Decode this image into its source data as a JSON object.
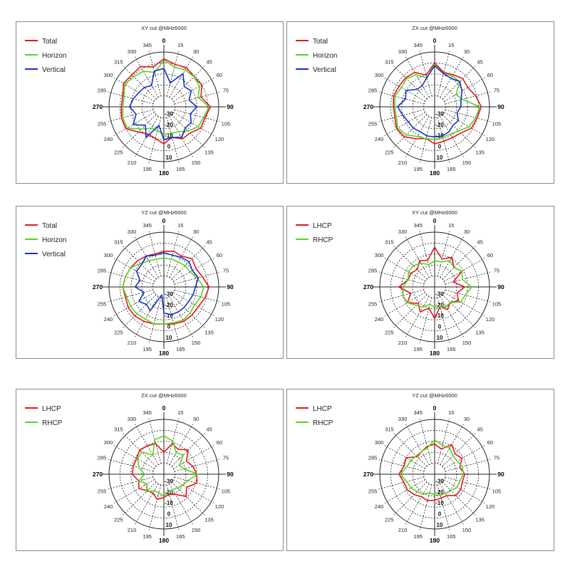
{
  "angle_labels": [
    "0",
    "15",
    "30",
    "45",
    "60",
    "75",
    "90",
    "105",
    "120",
    "135",
    "150",
    "165",
    "180",
    "195",
    "210",
    "225",
    "240",
    "255",
    "270",
    "285",
    "300",
    "315",
    "330",
    "345"
  ],
  "radial_labels": [
    "-30",
    "-20",
    "-10",
    "0",
    "10"
  ],
  "colors": {
    "Total": "#e8141c",
    "Horizon": "#5ad21f",
    "Vertical": "#1432c8",
    "LHCP": "#e8141c",
    "RHCP": "#5ad21f"
  },
  "chart_data": [
    {
      "type": "polar",
      "title": "XY cut @MHz6000",
      "theta_deg": [
        0,
        15,
        30,
        45,
        60,
        75,
        90,
        105,
        120,
        135,
        150,
        165,
        180,
        195,
        210,
        225,
        240,
        255,
        270,
        285,
        300,
        315,
        330,
        345
      ],
      "rlim": [
        -30,
        10
      ],
      "rticks": [
        -30,
        -20,
        -10,
        0,
        10
      ],
      "legend_position": "top-left",
      "series": [
        {
          "name": "Total",
          "r": [
            5,
            2,
            3,
            1,
            2,
            -2,
            4,
            1,
            1,
            -3,
            -3,
            -7,
            -3,
            -6,
            -7,
            -4,
            2,
            2,
            1,
            1,
            4,
            3,
            4,
            0
          ]
        },
        {
          "name": "Horizon",
          "r": [
            4,
            0,
            1,
            1,
            0,
            -4,
            3,
            0,
            -1,
            -5,
            -9,
            -10,
            -10,
            -12,
            -12,
            -7,
            1,
            1,
            0,
            0,
            3,
            1,
            0,
            -4
          ]
        },
        {
          "name": "Vertical",
          "r": [
            -2,
            -12,
            -2,
            -9,
            -7,
            -11,
            -6,
            -10,
            -7,
            -8,
            -4,
            -7,
            -6,
            -16,
            -4,
            -11,
            -4,
            -9,
            -5,
            -7,
            -9,
            -10,
            -12,
            -3
          ]
        }
      ]
    },
    {
      "type": "polar",
      "title": "ZX cut @MHz6000",
      "theta_deg": [
        0,
        15,
        30,
        45,
        60,
        75,
        90,
        105,
        120,
        135,
        150,
        165,
        180,
        195,
        210,
        225,
        240,
        255,
        270,
        285,
        300,
        315,
        330,
        345
      ],
      "rlim": [
        -30,
        10
      ],
      "rticks": [
        -30,
        -20,
        -10,
        0,
        10
      ],
      "legend_position": "top-left",
      "series": [
        {
          "name": "Total",
          "r": [
            2,
            -4,
            -3,
            -1,
            -2,
            1,
            4,
            2,
            1,
            -3,
            -4,
            -4,
            -3,
            -6,
            -3,
            1,
            2,
            0,
            0,
            1,
            0,
            0,
            -1,
            -6
          ]
        },
        {
          "name": "Horizon",
          "r": [
            1,
            -5,
            -4,
            -4,
            -12,
            -9,
            3,
            1,
            -1,
            -5,
            -7,
            -7,
            -6,
            -6,
            -5,
            -1,
            1,
            -1,
            -1,
            0,
            -2,
            -1,
            -3,
            -8
          ]
        },
        {
          "name": "Vertical",
          "r": [
            0,
            -5,
            -6,
            -4,
            -7,
            -10,
            -11,
            -13,
            -10,
            -11,
            -9,
            -8,
            -8,
            -8,
            -9,
            -8,
            -8,
            -6,
            -3,
            -8,
            -6,
            -12,
            -12,
            -8
          ]
        }
      ]
    },
    {
      "type": "polar",
      "title": "YZ cut @MHz6000",
      "theta_deg": [
        0,
        15,
        30,
        45,
        60,
        75,
        90,
        105,
        120,
        135,
        150,
        165,
        180,
        195,
        210,
        225,
        240,
        255,
        270,
        285,
        300,
        315,
        330,
        345
      ],
      "rlim": [
        -30,
        10
      ],
      "rticks": [
        -30,
        -20,
        -10,
        0,
        10
      ],
      "legend_position": "top-left",
      "series": [
        {
          "name": "Total",
          "r": [
            -4,
            -3,
            -4,
            -1,
            -3,
            -1,
            3,
            1,
            -1,
            -1,
            -1,
            -2,
            -3,
            -2,
            -1,
            0,
            0,
            -1,
            0,
            -1,
            -2,
            -3,
            -4,
            -5
          ]
        },
        {
          "name": "Horizon",
          "r": [
            -9,
            -9,
            -9,
            -8,
            -8,
            -5,
            -1,
            -2,
            -4,
            -3,
            -2,
            -3,
            -3,
            -2,
            -3,
            -2,
            -2,
            -2,
            0,
            -1,
            -2,
            -6,
            -8,
            -9
          ]
        },
        {
          "name": "Vertical",
          "r": [
            -5,
            -6,
            -5,
            -4,
            -6,
            -4,
            -7,
            -8,
            -9,
            -9,
            -9,
            -9,
            -11,
            -24,
            -10,
            -12,
            -9,
            -15,
            -9,
            -12,
            -7,
            -7,
            -4,
            -6
          ]
        }
      ]
    },
    {
      "type": "polar",
      "title": "XY cut @MHz6000",
      "theta_deg": [
        0,
        15,
        30,
        45,
        60,
        75,
        90,
        105,
        120,
        135,
        150,
        165,
        180,
        195,
        210,
        225,
        240,
        255,
        270,
        285,
        300,
        315,
        330,
        345
      ],
      "rlim": [
        -30,
        10
      ],
      "rticks": [
        -30,
        -20,
        -10,
        0,
        10
      ],
      "legend_position": "top-left",
      "series": [
        {
          "name": "LHCP",
          "r": [
            -1,
            -9,
            -5,
            -10,
            -7,
            -16,
            -8,
            -13,
            -10,
            -14,
            -11,
            -15,
            -7,
            -14,
            -9,
            -13,
            -7,
            -12,
            -4,
            -10,
            -10,
            -12,
            -8,
            -10
          ]
        },
        {
          "name": "RHCP",
          "r": [
            -11,
            -11,
            -8,
            -10,
            -7,
            -9,
            -3,
            -7,
            -8,
            -14,
            -13,
            -15,
            -15,
            -17,
            -13,
            -11,
            -7,
            -6,
            -7,
            -10,
            -8,
            -8,
            -10,
            -13
          ]
        }
      ]
    },
    {
      "type": "polar",
      "title": "ZX cut @MHz6000",
      "theta_deg": [
        0,
        15,
        30,
        45,
        60,
        75,
        90,
        105,
        120,
        135,
        150,
        165,
        180,
        195,
        210,
        225,
        240,
        255,
        270,
        285,
        300,
        315,
        330,
        345
      ],
      "rlim": [
        -30,
        10
      ],
      "rticks": [
        -30,
        -20,
        -10,
        0,
        10
      ],
      "legend_position": "top-left",
      "series": [
        {
          "name": "LHCP",
          "r": [
            -14,
            -7,
            -9,
            -5,
            -11,
            -8,
            -6,
            -5,
            -11,
            -7,
            -13,
            -15,
            -13,
            -11,
            -14,
            -13,
            -9,
            -11,
            -7,
            -7,
            -7,
            -5,
            -6,
            -7
          ]
        },
        {
          "name": "RHCP",
          "r": [
            -2,
            -5,
            -12,
            -10,
            -17,
            -15,
            -5,
            -12,
            -14,
            -16,
            -17,
            -17,
            -14,
            -16,
            -16,
            -12,
            -16,
            -11,
            -16,
            -11,
            -8,
            -7,
            -14,
            -4
          ]
        }
      ]
    },
    {
      "type": "polar",
      "title": "YZ cut @MHz6000",
      "theta_deg": [
        0,
        15,
        30,
        45,
        60,
        75,
        90,
        105,
        120,
        135,
        150,
        165,
        180,
        195,
        210,
        225,
        240,
        255,
        270,
        285,
        300,
        315,
        330,
        345
      ],
      "rlim": [
        -30,
        10
      ],
      "rticks": [
        -30,
        -20,
        -10,
        0,
        10
      ],
      "legend_position": "top-left",
      "series": [
        {
          "name": "LHCP",
          "r": [
            -8,
            -11,
            -5,
            -9,
            -7,
            -11,
            -8,
            -9,
            -8,
            -8,
            -12,
            -12,
            -11,
            -10,
            -11,
            -9,
            -7,
            -7,
            -4,
            -7,
            -6,
            -12,
            -11,
            -9
          ]
        },
        {
          "name": "RHCP",
          "r": [
            -5,
            -8,
            -8,
            -11,
            -11,
            -9,
            -9,
            -11,
            -11,
            -13,
            -14,
            -14,
            -15,
            -16,
            -13,
            -12,
            -10,
            -9,
            -5,
            -9,
            -10,
            -11,
            -11,
            -10
          ]
        }
      ]
    }
  ]
}
